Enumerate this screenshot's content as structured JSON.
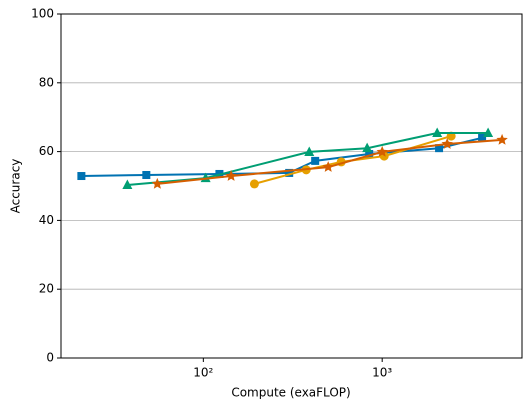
{
  "chart_data": {
    "type": "line",
    "x_label": "Compute (exaFLOP)",
    "y_label": "Accuracy",
    "x_scale": "log",
    "grid": "y",
    "xlim": [
      16,
      6050
    ],
    "ylim": [
      0,
      100
    ],
    "xticks": [
      {
        "value": 100,
        "label": "10²"
      },
      {
        "value": 1000,
        "label": "10³"
      }
    ],
    "yticks": [
      0,
      20,
      40,
      60,
      80,
      100
    ],
    "series": [
      {
        "color": "#0072b2",
        "marker": "square",
        "x": [
          20.8,
          48,
          123,
          302,
          422,
          846,
          2080,
          3620
        ],
        "values": [
          52.9,
          53.2,
          53.5,
          53.8,
          57.3,
          59.3,
          61.0,
          64.0
        ]
      },
      {
        "color": "#e69f00",
        "marker": "circle",
        "x": [
          193,
          376,
          590,
          1026,
          2430
        ],
        "values": [
          50.6,
          54.7,
          57.0,
          58.7,
          64.5
        ]
      },
      {
        "color": "#009e73",
        "marker": "triangle",
        "x": [
          37.6,
          103,
          391,
          824,
          2030,
          3910
        ],
        "values": [
          50.3,
          52.3,
          59.9,
          61.0,
          65.4,
          65.4
        ]
      },
      {
        "color": "#d55e00",
        "marker": "star",
        "x": [
          55.3,
          143,
          499,
          1000,
          2310,
          4680
        ],
        "values": [
          50.6,
          52.9,
          55.5,
          59.9,
          62.2,
          63.4
        ]
      }
    ]
  }
}
